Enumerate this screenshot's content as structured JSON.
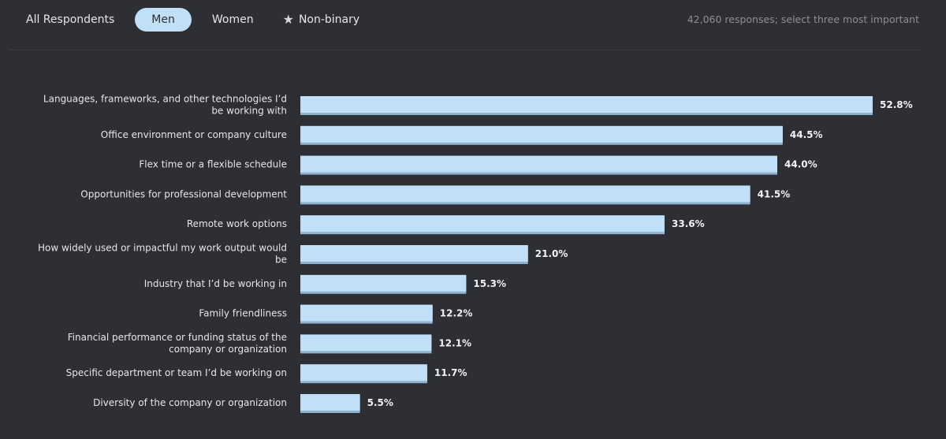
{
  "tabs": [
    {
      "label": "All Respondents",
      "active": false,
      "icon": ""
    },
    {
      "label": "Men",
      "active": true,
      "icon": ""
    },
    {
      "label": "Women",
      "active": false,
      "icon": ""
    },
    {
      "label": "Non-binary",
      "active": false,
      "icon": "star-icon"
    }
  ],
  "responses_note": "42,060 responses; select three most important",
  "colors": {
    "background": "#2d2f34",
    "bar_fill": "#bfe0f7",
    "bar_shadow": "#8fb3cf",
    "active_tab": "#bfe0f7"
  },
  "chart_data": {
    "type": "bar",
    "orientation": "horizontal",
    "categories": [
      "Languages, frameworks, and other technologies I’d be working with",
      "Office environment or company culture",
      "Flex time or a flexible schedule",
      "Opportunities for professional development",
      "Remote work options",
      "How widely used or impactful my work output would be",
      "Industry that I’d be working in",
      "Family friendliness",
      "Financial performance or funding status of the company or organization",
      "Specific department or team I’d be working on",
      "Diversity of the company or organization"
    ],
    "category_lines": [
      [
        "Languages, frameworks, and other technologies I’d",
        "be working with"
      ],
      [
        "Office environment or company culture"
      ],
      [
        "Flex time or a flexible schedule"
      ],
      [
        "Opportunities for professional development"
      ],
      [
        "Remote work options"
      ],
      [
        "How widely used or impactful my work output would",
        "be"
      ],
      [
        "Industry that I’d be working in"
      ],
      [
        "Family friendliness"
      ],
      [
        "Financial performance or funding status of the",
        "company or organization"
      ],
      [
        "Specific department or team I’d be working on"
      ],
      [
        "Diversity of the company or organization"
      ]
    ],
    "values": [
      52.8,
      44.5,
      44.0,
      41.5,
      33.6,
      21.0,
      15.3,
      12.2,
      12.1,
      11.7,
      5.5
    ],
    "value_labels": [
      "52.8%",
      "44.5%",
      "44.0%",
      "41.5%",
      "33.6%",
      "21.0%",
      "15.3%",
      "12.2%",
      "12.1%",
      "11.7%",
      "5.5%"
    ],
    "xlim": [
      0,
      60
    ],
    "grid": false,
    "title": "",
    "xlabel": "",
    "ylabel": ""
  }
}
